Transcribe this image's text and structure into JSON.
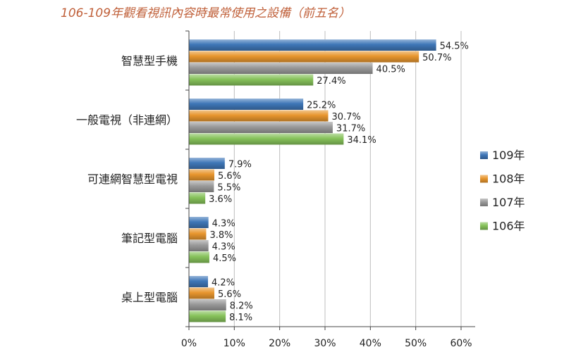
{
  "chart_data": {
    "type": "bar",
    "orientation": "horizontal",
    "title": "106-109年觀看視訊內容時最常使用之設備（前五名）",
    "categories": [
      "智慧型手機",
      "一般電視（非連網）",
      "可連網智慧型電視",
      "筆記型電腦",
      "桌上型電腦"
    ],
    "series": [
      {
        "name": "109年",
        "color": "#3f77b8",
        "values": [
          54.5,
          25.2,
          7.9,
          4.3,
          4.2
        ]
      },
      {
        "name": "108年",
        "color": "#e8962e",
        "values": [
          50.7,
          30.7,
          5.6,
          3.8,
          5.6
        ]
      },
      {
        "name": "107年",
        "color": "#9a9a9a",
        "values": [
          40.5,
          31.7,
          5.5,
          4.3,
          8.2
        ]
      },
      {
        "name": "106年",
        "color": "#86c25a",
        "values": [
          27.4,
          34.1,
          3.6,
          4.5,
          8.1
        ]
      }
    ],
    "value_suffix": "%",
    "xlim": [
      0,
      60
    ],
    "xticks": [
      "0%",
      "10%",
      "20%",
      "30%",
      "40%",
      "50%",
      "60%"
    ],
    "grid": true,
    "legend_position": "right"
  }
}
